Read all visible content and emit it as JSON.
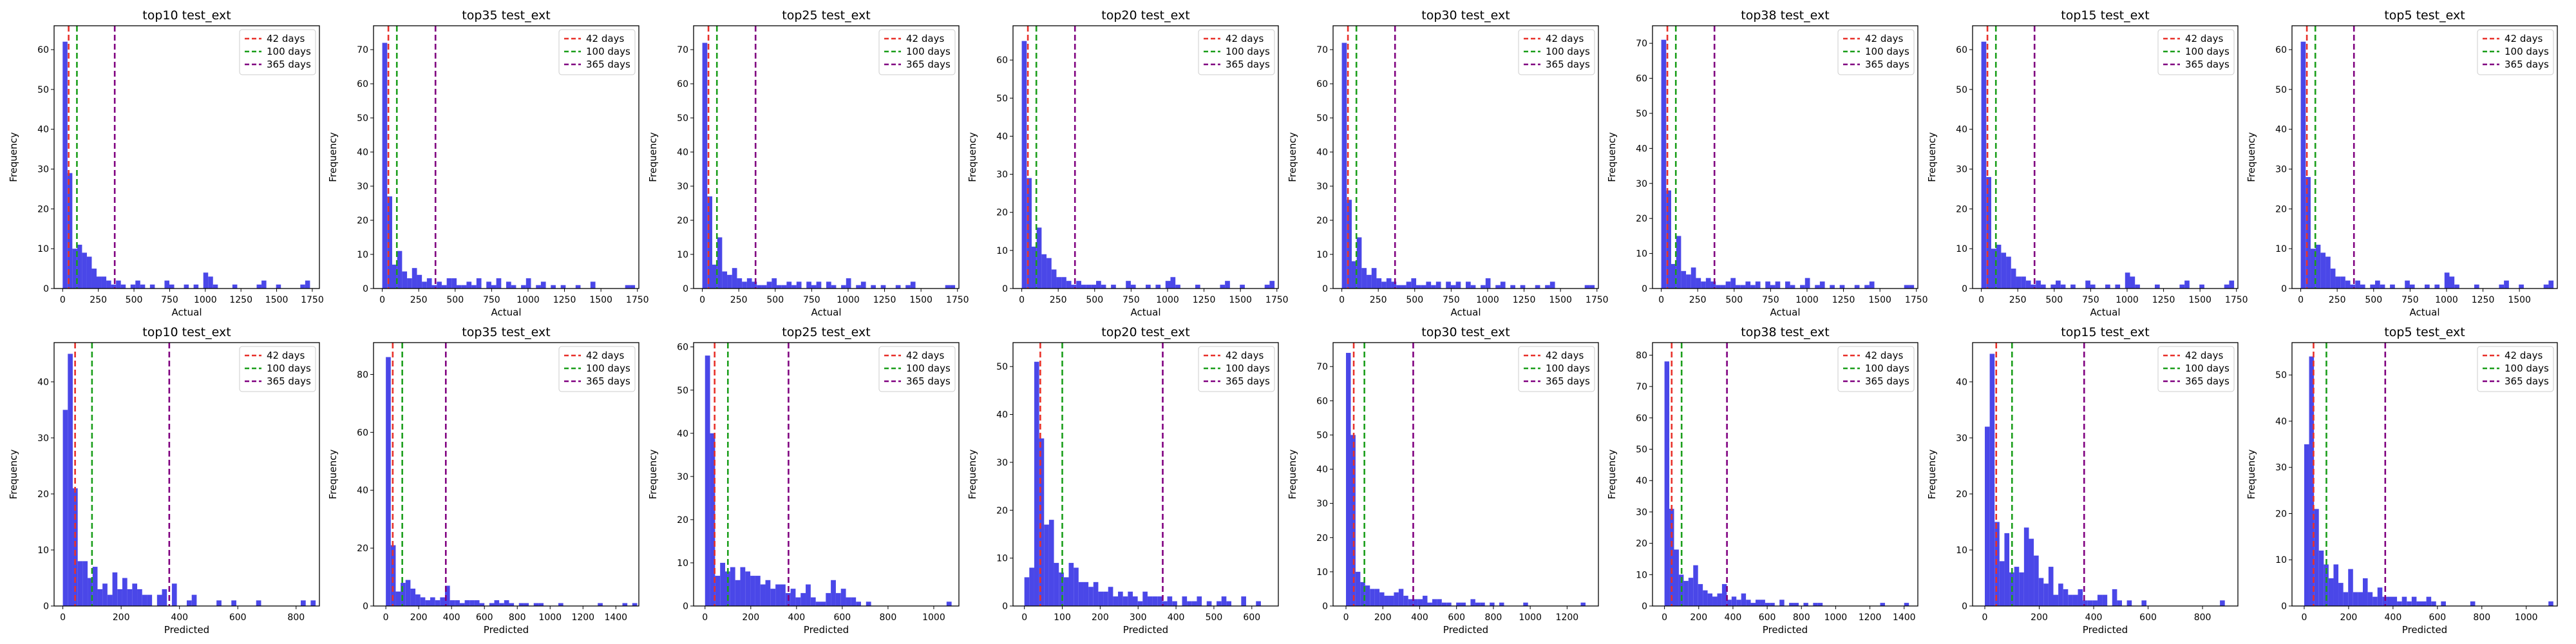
{
  "bar_color": "#4a47e8",
  "legend_items": [
    {
      "label": "42 days",
      "color": "#e8312a",
      "x": 42
    },
    {
      "label": "100 days",
      "color": "#1b9e1b",
      "x": 100
    },
    {
      "label": "365 days",
      "color": "#800080",
      "x": 365
    }
  ],
  "chart_data": [
    {
      "type": "bar",
      "title": "top10 test_ext",
      "xlabel": "Actual",
      "ylabel": "Frequency",
      "xlim": [
        -60,
        1800
      ],
      "ylim": [
        0,
        66
      ],
      "xticks": [
        0,
        250,
        500,
        750,
        1000,
        1250,
        1500,
        1750
      ],
      "yticks": [
        0,
        10,
        20,
        30,
        40,
        50,
        60
      ],
      "bin_width": 34,
      "bin_start": 0,
      "counts": [
        62,
        29,
        10,
        11,
        9,
        8,
        5,
        3,
        3,
        2,
        1,
        2,
        1,
        0,
        1,
        2,
        1,
        0,
        1,
        0,
        0,
        2,
        1,
        0,
        0,
        1,
        0,
        1,
        0,
        4,
        3,
        1,
        0,
        0,
        0,
        1,
        0,
        0,
        0,
        0,
        1,
        2,
        0,
        0,
        1,
        0,
        0,
        0,
        0,
        1,
        2,
        0
      ]
    },
    {
      "type": "bar",
      "title": "top35 test_ext",
      "xlabel": "Actual",
      "ylabel": "Frequency",
      "xlim": [
        -60,
        1760
      ],
      "ylim": [
        0,
        77
      ],
      "xticks": [
        0,
        250,
        500,
        750,
        1000,
        1250,
        1500,
        1750
      ],
      "yticks": [
        0,
        10,
        20,
        30,
        40,
        50,
        60,
        70
      ],
      "bin_width": 34,
      "bin_start": 0,
      "counts": [
        72,
        27,
        7,
        11,
        5,
        3,
        6,
        4,
        2,
        3,
        1,
        2,
        1,
        3,
        3,
        1,
        1,
        2,
        1,
        3,
        0,
        2,
        1,
        3,
        0,
        2,
        1,
        0,
        1,
        3,
        0,
        1,
        2,
        0,
        1,
        0,
        1,
        0,
        0,
        1,
        0,
        0,
        2,
        0,
        0,
        0,
        0,
        0,
        0,
        1,
        1,
        0
      ]
    },
    {
      "type": "bar",
      "title": "top25 test_ext",
      "xlabel": "Actual",
      "ylabel": "Frequency",
      "xlim": [
        -60,
        1760
      ],
      "ylim": [
        0,
        77
      ],
      "xticks": [
        0,
        250,
        500,
        750,
        1000,
        1250,
        1500,
        1750
      ],
      "yticks": [
        0,
        10,
        20,
        30,
        40,
        50,
        60,
        70
      ],
      "bin_width": 34,
      "bin_start": 0,
      "counts": [
        72,
        27,
        7,
        15,
        5,
        4,
        6,
        3,
        2,
        3,
        2,
        1,
        1,
        2,
        3,
        1,
        1,
        2,
        1,
        2,
        0,
        2,
        1,
        2,
        0,
        2,
        1,
        0,
        1,
        3,
        0,
        1,
        2,
        0,
        1,
        0,
        1,
        0,
        0,
        1,
        0,
        1,
        2,
        0,
        0,
        0,
        0,
        0,
        0,
        1,
        1,
        0
      ]
    },
    {
      "type": "bar",
      "title": "top20 test_ext",
      "xlabel": "Actual",
      "ylabel": "Frequency",
      "xlim": [
        -60,
        1760
      ],
      "ylim": [
        0,
        69
      ],
      "xticks": [
        0,
        250,
        500,
        750,
        1000,
        1250,
        1500,
        1750
      ],
      "yticks": [
        0,
        10,
        20,
        30,
        40,
        50,
        60
      ],
      "bin_width": 34,
      "bin_start": 0,
      "counts": [
        65,
        29,
        11,
        16,
        9,
        8,
        5,
        3,
        3,
        2,
        1,
        2,
        1,
        1,
        1,
        2,
        1,
        0,
        1,
        0,
        0,
        2,
        1,
        0,
        0,
        1,
        0,
        1,
        0,
        2,
        3,
        1,
        0,
        0,
        0,
        1,
        0,
        0,
        0,
        0,
        1,
        2,
        0,
        0,
        1,
        0,
        0,
        0,
        0,
        1,
        2,
        0
      ]
    },
    {
      "type": "bar",
      "title": "top30 test_ext",
      "xlabel": "Actual",
      "ylabel": "Frequency",
      "xlim": [
        -60,
        1760
      ],
      "ylim": [
        0,
        77
      ],
      "xticks": [
        0,
        250,
        500,
        750,
        1000,
        1250,
        1500,
        1750
      ],
      "yticks": [
        0,
        10,
        20,
        30,
        40,
        50,
        60,
        70
      ],
      "bin_width": 34,
      "bin_start": 0,
      "counts": [
        72,
        26,
        8,
        15,
        6,
        4,
        6,
        3,
        2,
        3,
        2,
        1,
        1,
        2,
        3,
        1,
        1,
        2,
        1,
        2,
        0,
        2,
        1,
        2,
        0,
        2,
        1,
        0,
        1,
        3,
        0,
        1,
        2,
        0,
        1,
        0,
        1,
        0,
        0,
        1,
        0,
        1,
        2,
        0,
        0,
        0,
        0,
        0,
        0,
        1,
        1,
        0
      ]
    },
    {
      "type": "bar",
      "title": "top38 test_ext",
      "xlabel": "Actual",
      "ylabel": "Frequency",
      "xlim": [
        -60,
        1760
      ],
      "ylim": [
        0,
        75
      ],
      "xticks": [
        0,
        250,
        500,
        750,
        1000,
        1250,
        1500,
        1750
      ],
      "yticks": [
        0,
        10,
        20,
        30,
        40,
        50,
        60,
        70
      ],
      "bin_width": 34,
      "bin_start": 0,
      "counts": [
        71,
        28,
        7,
        15,
        5,
        4,
        6,
        3,
        2,
        3,
        2,
        1,
        1,
        2,
        3,
        1,
        1,
        2,
        1,
        2,
        0,
        2,
        1,
        2,
        0,
        2,
        1,
        0,
        1,
        3,
        0,
        1,
        2,
        0,
        1,
        0,
        1,
        0,
        0,
        1,
        0,
        1,
        2,
        0,
        0,
        0,
        0,
        0,
        0,
        1,
        1,
        0
      ]
    },
    {
      "type": "bar",
      "title": "top15 test_ext",
      "xlabel": "Actual",
      "ylabel": "Frequency",
      "xlim": [
        -60,
        1760
      ],
      "ylim": [
        0,
        66
      ],
      "xticks": [
        0,
        250,
        500,
        750,
        1000,
        1250,
        1500,
        1750
      ],
      "yticks": [
        0,
        10,
        20,
        30,
        40,
        50,
        60
      ],
      "bin_width": 34,
      "bin_start": 0,
      "counts": [
        62,
        28,
        10,
        11,
        9,
        8,
        5,
        3,
        3,
        2,
        1,
        2,
        1,
        0,
        1,
        2,
        1,
        0,
        1,
        0,
        0,
        2,
        1,
        0,
        0,
        1,
        0,
        1,
        0,
        4,
        3,
        1,
        0,
        0,
        0,
        1,
        0,
        0,
        0,
        0,
        1,
        2,
        0,
        0,
        1,
        0,
        0,
        0,
        0,
        1,
        2,
        0
      ]
    },
    {
      "type": "bar",
      "title": "top5 test_ext",
      "xlabel": "Actual",
      "ylabel": "Frequency",
      "xlim": [
        -60,
        1760
      ],
      "ylim": [
        0,
        66
      ],
      "xticks": [
        0,
        250,
        500,
        750,
        1000,
        1250,
        1500
      ],
      "yticks": [
        0,
        10,
        20,
        30,
        40,
        50,
        60
      ],
      "bin_width": 34,
      "bin_start": 0,
      "counts": [
        62,
        28,
        10,
        11,
        9,
        8,
        5,
        3,
        3,
        2,
        1,
        2,
        1,
        0,
        1,
        2,
        1,
        0,
        1,
        0,
        0,
        2,
        1,
        0,
        0,
        1,
        0,
        1,
        0,
        4,
        3,
        1,
        0,
        0,
        0,
        1,
        0,
        0,
        0,
        0,
        1,
        2,
        0,
        0,
        1,
        0,
        0,
        0,
        0,
        1,
        2,
        0
      ]
    },
    {
      "type": "bar",
      "title": "top10 test_ext",
      "xlabel": "Predicted",
      "ylabel": "Frequency",
      "xlim": [
        -30,
        880
      ],
      "ylim": [
        0,
        47
      ],
      "xticks": [
        0,
        200,
        400,
        600,
        800
      ],
      "yticks": [
        0,
        10,
        20,
        30,
        40
      ],
      "bin_width": 17,
      "bin_start": 0,
      "counts": [
        35,
        45,
        21,
        8,
        8,
        5,
        7,
        3,
        4,
        2,
        6,
        3,
        5,
        3,
        4,
        3,
        2,
        2,
        0,
        2,
        3,
        0,
        4,
        0,
        0,
        1,
        2,
        0,
        0,
        0,
        0,
        1,
        0,
        0,
        1,
        0,
        0,
        0,
        0,
        1,
        0,
        0,
        0,
        0,
        0,
        0,
        0,
        0,
        1,
        0,
        1
      ]
    },
    {
      "type": "bar",
      "title": "top35 test_ext",
      "xlabel": "Predicted",
      "ylabel": "Frequency",
      "xlim": [
        -75,
        1540
      ],
      "ylim": [
        0,
        91
      ],
      "xticks": [
        0,
        200,
        400,
        600,
        800,
        1000,
        1200,
        1400
      ],
      "yticks": [
        0,
        20,
        40,
        60,
        80
      ],
      "bin_width": 30,
      "bin_start": 0,
      "counts": [
        86,
        21,
        5,
        8,
        9,
        6,
        4,
        3,
        2,
        3,
        2,
        3,
        7,
        2,
        2,
        1,
        2,
        2,
        2,
        1,
        0,
        1,
        2,
        1,
        2,
        1,
        0,
        1,
        1,
        0,
        1,
        1,
        0,
        0,
        0,
        1,
        0,
        0,
        0,
        0,
        0,
        0,
        0,
        1,
        0,
        0,
        0,
        0,
        1,
        0,
        1
      ]
    },
    {
      "type": "bar",
      "title": "top25 test_ext",
      "xlabel": "Predicted",
      "ylabel": "Frequency",
      "xlim": [
        -50,
        1110
      ],
      "ylim": [
        0,
        61
      ],
      "xticks": [
        0,
        200,
        400,
        600,
        800,
        1000
      ],
      "yticks": [
        0,
        10,
        20,
        30,
        40,
        50,
        60
      ],
      "bin_width": 22,
      "bin_start": 0,
      "counts": [
        58,
        40,
        7,
        10,
        8,
        9,
        6,
        9,
        8,
        7,
        7,
        5,
        6,
        4,
        5,
        5,
        3,
        4,
        2,
        3,
        5,
        2,
        1,
        1,
        3,
        6,
        3,
        4,
        2,
        2,
        1,
        0,
        1,
        0,
        0,
        0,
        0,
        0,
        0,
        0,
        0,
        0,
        0,
        0,
        0,
        0,
        0,
        0,
        1,
        0
      ]
    },
    {
      "type": "bar",
      "title": "top20 test_ext",
      "xlabel": "Predicted",
      "ylabel": "Frequency",
      "xlim": [
        -30,
        670
      ],
      "ylim": [
        0,
        55
      ],
      "xticks": [
        0,
        100,
        200,
        300,
        400,
        500,
        600
      ],
      "yticks": [
        0,
        10,
        20,
        30,
        40,
        50
      ],
      "bin_width": 13,
      "bin_start": 0,
      "counts": [
        6,
        8,
        51,
        35,
        17,
        18,
        9,
        7,
        6,
        9,
        8,
        5,
        5,
        4,
        5,
        3,
        3,
        4,
        2,
        3,
        2,
        3,
        2,
        1,
        3,
        2,
        2,
        2,
        1,
        2,
        1,
        0,
        2,
        1,
        1,
        2,
        0,
        1,
        0,
        1,
        2,
        1,
        0,
        0,
        2,
        0,
        0,
        1,
        0,
        0
      ]
    },
    {
      "type": "bar",
      "title": "top30 test_ext",
      "xlabel": "Predicted",
      "ylabel": "Frequency",
      "xlim": [
        -70,
        1370
      ],
      "ylim": [
        0,
        77
      ],
      "xticks": [
        0,
        200,
        400,
        600,
        800,
        1000,
        1200
      ],
      "yticks": [
        0,
        10,
        20,
        30,
        40,
        50,
        60,
        70
      ],
      "bin_width": 26,
      "bin_start": 0,
      "counts": [
        74,
        50,
        10,
        7,
        6,
        5,
        5,
        4,
        3,
        3,
        4,
        5,
        3,
        2,
        2,
        2,
        3,
        1,
        2,
        2,
        1,
        1,
        0,
        1,
        1,
        0,
        2,
        1,
        1,
        0,
        1,
        0,
        1,
        0,
        0,
        0,
        0,
        1,
        0,
        0,
        0,
        0,
        0,
        0,
        0,
        0,
        0,
        0,
        0,
        1
      ]
    },
    {
      "type": "bar",
      "title": "top38 test_ext",
      "xlabel": "Predicted",
      "ylabel": "Frequency",
      "xlim": [
        -70,
        1480
      ],
      "ylim": [
        0,
        84
      ],
      "xticks": [
        0,
        200,
        400,
        600,
        800,
        1000,
        1200,
        1400
      ],
      "yticks": [
        0,
        10,
        20,
        30,
        40,
        50,
        60,
        70,
        80
      ],
      "bin_width": 28,
      "bin_start": 0,
      "counts": [
        78,
        31,
        18,
        10,
        8,
        9,
        13,
        7,
        5,
        4,
        3,
        4,
        7,
        2,
        3,
        2,
        4,
        2,
        1,
        2,
        2,
        1,
        1,
        0,
        2,
        0,
        1,
        1,
        0,
        1,
        0,
        1,
        1,
        0,
        0,
        0,
        0,
        0,
        0,
        0,
        0,
        0,
        0,
        0,
        0,
        1,
        0,
        0,
        0,
        0,
        1
      ]
    },
    {
      "type": "bar",
      "title": "top15 test_ext",
      "xlabel": "Predicted",
      "ylabel": "Frequency",
      "xlim": [
        -45,
        930
      ],
      "ylim": [
        0,
        47
      ],
      "xticks": [
        0,
        200,
        400,
        600,
        800
      ],
      "yticks": [
        0,
        10,
        20,
        30,
        40
      ],
      "bin_width": 18,
      "bin_start": 0,
      "counts": [
        32,
        45,
        15,
        8,
        13,
        6,
        7,
        6,
        14,
        12,
        9,
        5,
        4,
        7,
        2,
        4,
        3,
        2,
        2,
        3,
        1,
        1,
        1,
        2,
        2,
        0,
        3,
        1,
        0,
        1,
        0,
        0,
        1,
        0,
        0,
        0,
        0,
        0,
        0,
        0,
        0,
        0,
        0,
        0,
        0,
        0,
        0,
        0,
        1,
        0
      ]
    },
    {
      "type": "bar",
      "title": "top5 test_ext",
      "xlabel": "Predicted",
      "ylabel": "Frequency",
      "xlim": [
        -55,
        1140
      ],
      "ylim": [
        0,
        57
      ],
      "xticks": [
        0,
        200,
        400,
        600,
        800,
        1000
      ],
      "yticks": [
        0,
        10,
        20,
        30,
        40,
        50
      ],
      "bin_width": 22,
      "bin_start": 0,
      "counts": [
        35,
        54,
        21,
        12,
        9,
        6,
        9,
        5,
        3,
        8,
        3,
        3,
        6,
        3,
        2,
        4,
        2,
        2,
        2,
        1,
        2,
        1,
        2,
        1,
        1,
        2,
        1,
        0,
        1,
        0,
        0,
        0,
        0,
        0,
        1,
        0,
        0,
        0,
        0,
        0,
        0,
        0,
        0,
        0,
        0,
        0,
        0,
        0,
        0,
        0,
        1
      ]
    }
  ]
}
